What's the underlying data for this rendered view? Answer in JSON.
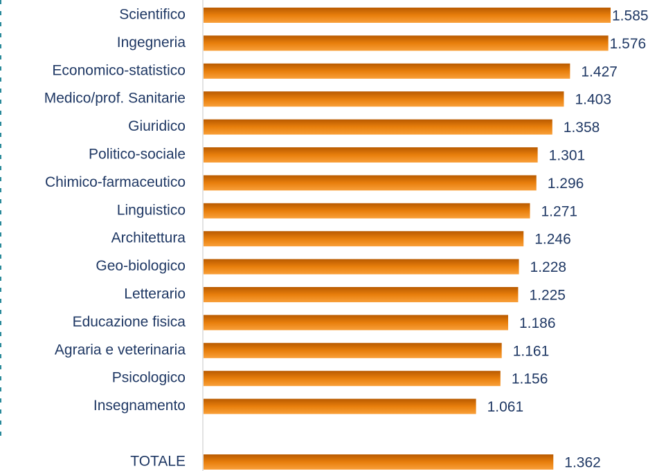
{
  "chart_data": {
    "type": "bar",
    "orientation": "horizontal",
    "categories": [
      "Scientifico",
      "Ingegneria",
      "Economico-statistico",
      "Medico/prof. Sanitarie",
      "Giuridico",
      "Politico-sociale",
      "Chimico-farmaceutico",
      "Linguistico",
      "Architettura",
      "Geo-biologico",
      "Letterario",
      "Educazione fisica",
      "Agraria e veterinaria",
      "Psicologico",
      "Insegnamento",
      "TOTALE"
    ],
    "values": [
      1585,
      1576,
      1427,
      1403,
      1358,
      1301,
      1296,
      1271,
      1246,
      1228,
      1225,
      1186,
      1161,
      1156,
      1061,
      1362
    ],
    "value_labels": [
      "1.585",
      "1.576",
      "1.427",
      "1.403",
      "1.358",
      "1.301",
      "1.296",
      "1.271",
      "1.246",
      "1.228",
      "1.225",
      "1.186",
      "1.161",
      "1.156",
      "1.061",
      "1.362"
    ],
    "color": "#e87f0c"
  }
}
